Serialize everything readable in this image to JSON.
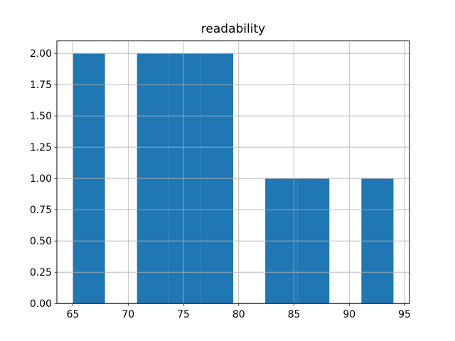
{
  "figure": {
    "background": "#ffffff"
  },
  "chart_data": {
    "type": "bar",
    "subtype": "histogram",
    "title": "readability",
    "xlabel": "",
    "ylabel": "",
    "bin_edges": [
      65.0,
      67.9,
      70.8,
      73.7,
      76.6,
      79.5,
      82.4,
      85.3,
      88.2,
      91.1,
      94.0
    ],
    "counts": [
      2,
      0,
      2,
      2,
      2,
      0,
      1,
      1,
      0,
      1
    ],
    "xlim": [
      63.55,
      95.45
    ],
    "ylim": [
      0,
      2.1
    ],
    "x_tick_labels": [
      "65",
      "70",
      "75",
      "80",
      "85",
      "90",
      "95"
    ],
    "y_tick_labels": [
      "0.00",
      "0.25",
      "0.50",
      "0.75",
      "1.00",
      "1.25",
      "1.50",
      "1.75",
      "2.00"
    ],
    "grid": true,
    "grid_above_bars": true,
    "legend": false,
    "colors": {
      "bar": "#1f77b4",
      "grid": "#b0b0b0",
      "spine": "#000000",
      "tick": "#000000",
      "text": "#000000",
      "background": "#ffffff"
    }
  }
}
